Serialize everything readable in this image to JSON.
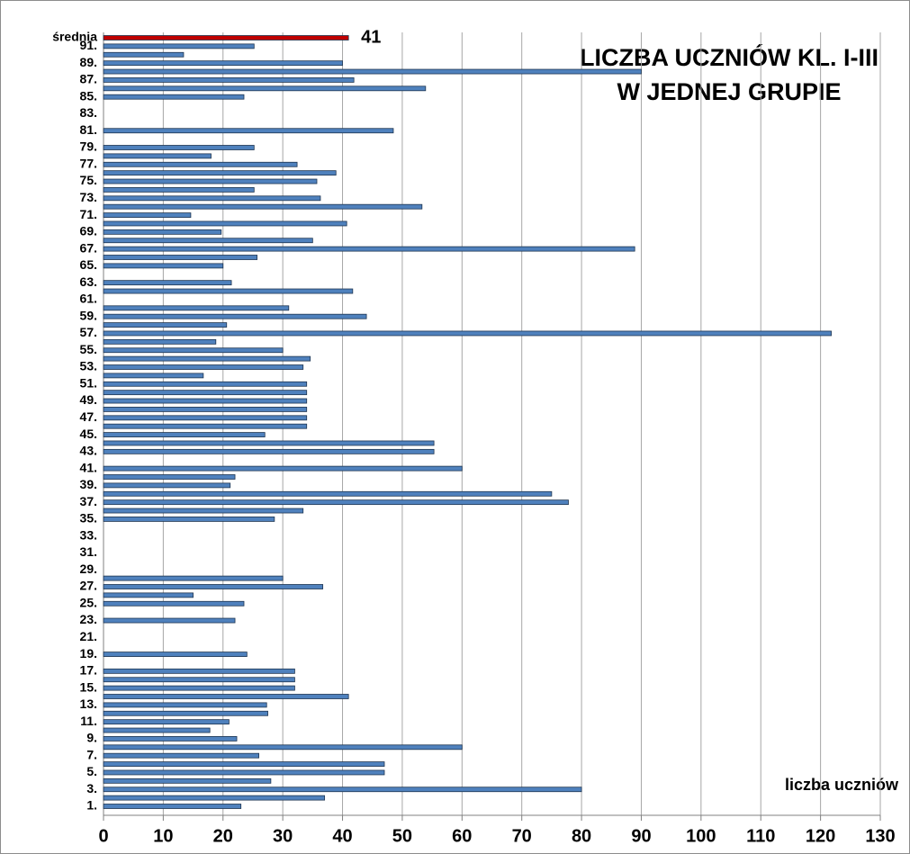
{
  "chart_data": {
    "type": "barh",
    "title": [
      "LICZBA UCZNIÓW KL. I-III",
      "W JEDNEJ GRUPIE"
    ],
    "x_label": "liczba uczniów",
    "categories": [
      "1.",
      null,
      "3.",
      null,
      "5.",
      null,
      "7.",
      null,
      "9.",
      null,
      "11.",
      null,
      "13.",
      null,
      "15.",
      null,
      "17.",
      null,
      "19.",
      null,
      "21.",
      null,
      "23.",
      null,
      "25.",
      null,
      "27.",
      null,
      "29.",
      null,
      "31.",
      null,
      "33.",
      null,
      "35.",
      null,
      "37.",
      null,
      "39.",
      null,
      "41.",
      null,
      "43.",
      null,
      "45.",
      null,
      "47.",
      null,
      "49.",
      null,
      "51.",
      null,
      "53.",
      null,
      "55.",
      null,
      "57.",
      null,
      "59.",
      null,
      "61.",
      null,
      "63.",
      null,
      "65.",
      null,
      "67.",
      null,
      "69.",
      null,
      "71.",
      null,
      "73.",
      null,
      "75.",
      null,
      "77.",
      null,
      "79.",
      null,
      "81.",
      null,
      "83.",
      null,
      "85.",
      null,
      "87.",
      null,
      "89.",
      null,
      "91.",
      "średnia"
    ],
    "values": [
      23,
      37,
      80,
      28,
      47,
      47,
      26,
      60,
      22.3,
      17.8,
      21,
      27.5,
      27.3,
      41,
      32,
      32,
      32,
      null,
      24,
      null,
      null,
      null,
      22,
      null,
      23.5,
      15,
      36.7,
      30,
      null,
      null,
      null,
      null,
      null,
      null,
      28.6,
      33.4,
      77.8,
      75,
      21.2,
      22,
      60,
      null,
      55.3,
      55.3,
      27,
      34,
      34,
      34,
      34,
      34,
      34,
      16.7,
      33.4,
      34.6,
      30,
      18.8,
      121.8,
      20.6,
      44,
      31,
      null,
      41.7,
      21.4,
      null,
      20,
      25.7,
      88.9,
      35,
      19.7,
      40.7,
      14.6,
      53.3,
      36.3,
      25.2,
      35.7,
      38.9,
      32.4,
      18,
      25.2,
      null,
      48.5,
      null,
      null,
      null,
      23.5,
      53.9,
      41.9,
      90,
      40,
      13.4,
      25.2,
      41
    ],
    "value_labels": [
      null,
      null,
      null,
      null,
      null,
      null,
      null,
      null,
      null,
      null,
      null,
      null,
      null,
      null,
      null,
      null,
      null,
      null,
      null,
      null,
      null,
      null,
      null,
      null,
      null,
      null,
      null,
      null,
      null,
      null,
      null,
      null,
      null,
      null,
      null,
      null,
      null,
      null,
      null,
      null,
      null,
      null,
      null,
      null,
      null,
      null,
      null,
      null,
      null,
      null,
      null,
      null,
      null,
      null,
      null,
      null,
      null,
      null,
      null,
      null,
      null,
      null,
      null,
      null,
      null,
      null,
      null,
      null,
      null,
      null,
      null,
      null,
      null,
      null,
      null,
      null,
      null,
      null,
      null,
      null,
      null,
      null,
      null,
      null,
      null,
      null,
      null,
      null,
      null,
      null,
      null,
      "41"
    ],
    "colors": [
      "#4f81bd",
      "#4f81bd",
      "#4f81bd",
      "#4f81bd",
      "#4f81bd",
      "#4f81bd",
      "#4f81bd",
      "#4f81bd",
      "#4f81bd",
      "#4f81bd",
      "#4f81bd",
      "#4f81bd",
      "#4f81bd",
      "#4f81bd",
      "#4f81bd",
      "#4f81bd",
      "#4f81bd",
      "#4f81bd",
      "#4f81bd",
      "#4f81bd",
      "#4f81bd",
      "#4f81bd",
      "#4f81bd",
      "#4f81bd",
      "#4f81bd",
      "#4f81bd",
      "#4f81bd",
      "#4f81bd",
      "#4f81bd",
      "#4f81bd",
      "#4f81bd",
      "#4f81bd",
      "#4f81bd",
      "#4f81bd",
      "#4f81bd",
      "#4f81bd",
      "#4f81bd",
      "#4f81bd",
      "#4f81bd",
      "#4f81bd",
      "#4f81bd",
      "#4f81bd",
      "#4f81bd",
      "#4f81bd",
      "#4f81bd",
      "#4f81bd",
      "#4f81bd",
      "#4f81bd",
      "#4f81bd",
      "#4f81bd",
      "#4f81bd",
      "#4f81bd",
      "#4f81bd",
      "#4f81bd",
      "#4f81bd",
      "#4f81bd",
      "#4f81bd",
      "#4f81bd",
      "#4f81bd",
      "#4f81bd",
      "#4f81bd",
      "#4f81bd",
      "#4f81bd",
      "#4f81bd",
      "#4f81bd",
      "#4f81bd",
      "#4f81bd",
      "#4f81bd",
      "#4f81bd",
      "#4f81bd",
      "#4f81bd",
      "#4f81bd",
      "#4f81bd",
      "#4f81bd",
      "#4f81bd",
      "#4f81bd",
      "#4f81bd",
      "#4f81bd",
      "#4f81bd",
      "#4f81bd",
      "#4f81bd",
      "#4f81bd",
      "#4f81bd",
      "#4f81bd",
      "#4f81bd",
      "#4f81bd",
      "#4f81bd",
      "#4f81bd",
      "#4f81bd",
      "#4f81bd",
      "#4f81bd",
      "#c00000"
    ],
    "xlim": [
      0,
      130
    ],
    "xticks": [
      0,
      10,
      20,
      30,
      40,
      50,
      60,
      70,
      80,
      90,
      100,
      110,
      120,
      130
    ],
    "grid": true
  }
}
